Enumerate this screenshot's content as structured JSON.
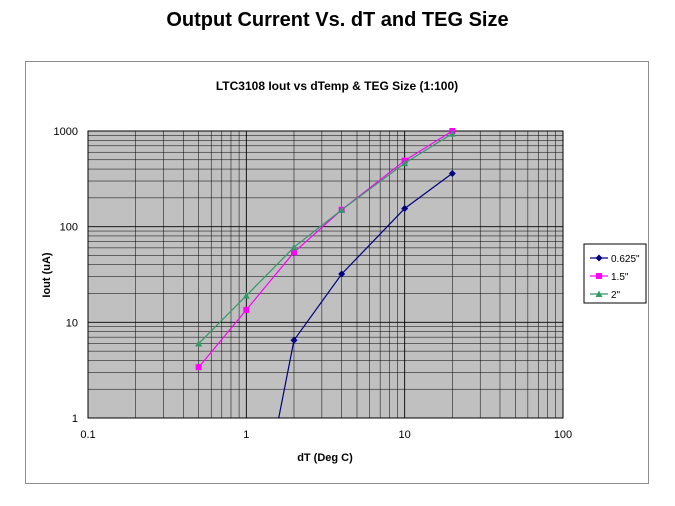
{
  "slide": {
    "title": "Output Current Vs. dT and TEG Size"
  },
  "chart_data": {
    "type": "line",
    "title": "LTC3108  Iout vs dTemp & TEG Size (1:100)",
    "xlabel": "dT (Deg C)",
    "ylabel": "Iout (uA)",
    "xscale": "log",
    "yscale": "log",
    "xlim": [
      0.1,
      100
    ],
    "ylim": [
      1,
      1000
    ],
    "xticks": [
      "0.1",
      "1",
      "10",
      "100"
    ],
    "yticks": [
      "1",
      "10",
      "100",
      "1000"
    ],
    "grid": true,
    "legend": "right",
    "plot_background": "#c0c0c0",
    "series": [
      {
        "name": "0.625\"",
        "color": "#000080",
        "marker": "diamond",
        "x": [
          1.6,
          2,
          4,
          10,
          20
        ],
        "y": [
          1,
          6.5,
          32,
          155,
          360
        ]
      },
      {
        "name": "1.5\"",
        "color": "#ff00ff",
        "marker": "square",
        "x": [
          0.5,
          1,
          2,
          4,
          10,
          20
        ],
        "y": [
          3.4,
          13.5,
          54,
          150,
          490,
          1000
        ]
      },
      {
        "name": "2\"",
        "color": "#339966",
        "marker": "triangle",
        "x": [
          0.5,
          1,
          2,
          4,
          10,
          20
        ],
        "y": [
          6,
          19,
          61,
          150,
          460,
          940
        ]
      }
    ]
  }
}
